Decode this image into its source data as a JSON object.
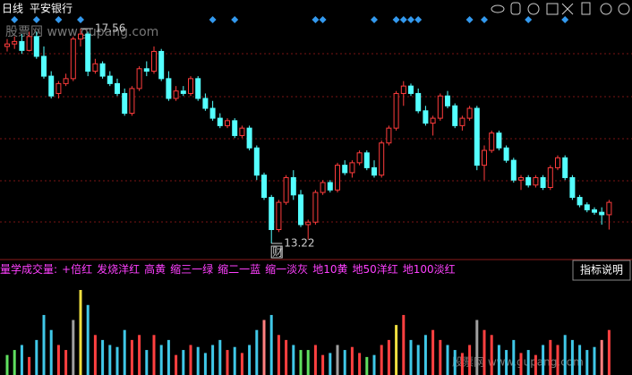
{
  "chart_data": [
    {
      "type": "candlestick",
      "period": "日线",
      "title": "平安银行",
      "up_color": "#ff3c3c",
      "down_color": "#54ffff",
      "signal_color": "#3399ee",
      "high_label": 17.56,
      "low_label": 13.22,
      "low_marker": "财",
      "watermark": "股票网 www.gupang.com",
      "ohlc": [
        [
          17.2,
          17.35,
          17.1,
          17.25
        ],
        [
          17.25,
          17.4,
          17.15,
          17.3
        ],
        [
          17.3,
          17.45,
          17.05,
          17.12
        ],
        [
          17.12,
          17.5,
          17.1,
          17.4
        ],
        [
          17.4,
          17.5,
          16.95,
          17.0
        ],
        [
          17.0,
          17.2,
          16.55,
          16.6
        ],
        [
          16.6,
          16.7,
          16.15,
          16.2
        ],
        [
          16.25,
          16.5,
          16.15,
          16.45
        ],
        [
          16.45,
          16.65,
          16.4,
          16.55
        ],
        [
          16.55,
          17.4,
          16.5,
          17.35
        ],
        [
          17.35,
          17.56,
          17.2,
          17.45
        ],
        [
          17.45,
          17.5,
          16.6,
          16.7
        ],
        [
          16.7,
          16.95,
          16.65,
          16.85
        ],
        [
          16.85,
          16.9,
          16.55,
          16.6
        ],
        [
          16.6,
          16.7,
          16.4,
          16.45
        ],
        [
          16.45,
          16.55,
          16.2,
          16.25
        ],
        [
          16.25,
          16.35,
          15.8,
          15.85
        ],
        [
          15.85,
          16.4,
          15.8,
          16.35
        ],
        [
          16.35,
          16.8,
          16.3,
          16.75
        ],
        [
          16.75,
          16.9,
          16.6,
          16.7
        ],
        [
          16.7,
          17.2,
          16.65,
          17.1
        ],
        [
          17.1,
          17.15,
          16.5,
          16.55
        ],
        [
          16.55,
          16.7,
          16.1,
          16.15
        ],
        [
          16.15,
          16.4,
          16.1,
          16.3
        ],
        [
          16.3,
          16.4,
          16.2,
          16.25
        ],
        [
          16.25,
          16.6,
          16.2,
          16.55
        ],
        [
          16.55,
          16.6,
          16.1,
          16.15
        ],
        [
          16.15,
          16.25,
          15.9,
          15.95
        ],
        [
          15.95,
          16.1,
          15.7,
          15.75
        ],
        [
          15.75,
          15.85,
          15.55,
          15.6
        ],
        [
          15.6,
          15.75,
          15.55,
          15.7
        ],
        [
          15.7,
          15.75,
          15.35,
          15.4
        ],
        [
          15.4,
          15.6,
          15.35,
          15.55
        ],
        [
          15.55,
          15.6,
          15.1,
          15.15
        ],
        [
          15.15,
          15.2,
          14.5,
          14.6
        ],
        [
          14.6,
          14.65,
          14.1,
          14.15
        ],
        [
          14.15,
          14.2,
          13.22,
          13.5
        ],
        [
          13.5,
          14.1,
          13.45,
          14.05
        ],
        [
          14.05,
          14.6,
          14.0,
          14.55
        ],
        [
          14.55,
          14.7,
          14.1,
          14.2
        ],
        [
          14.2,
          14.3,
          13.55,
          13.6
        ],
        [
          13.6,
          13.7,
          13.3,
          13.65
        ],
        [
          13.65,
          14.3,
          13.6,
          14.25
        ],
        [
          14.25,
          14.5,
          14.2,
          14.45
        ],
        [
          14.45,
          14.5,
          14.25,
          14.3
        ],
        [
          14.3,
          14.85,
          14.25,
          14.8
        ],
        [
          14.8,
          14.9,
          14.6,
          14.65
        ],
        [
          14.65,
          14.9,
          14.55,
          14.85
        ],
        [
          14.85,
          15.1,
          14.8,
          15.05
        ],
        [
          15.05,
          15.1,
          14.7,
          14.75
        ],
        [
          14.75,
          14.9,
          14.55,
          14.6
        ],
        [
          14.6,
          15.3,
          14.55,
          15.25
        ],
        [
          15.25,
          15.6,
          15.2,
          15.55
        ],
        [
          15.55,
          16.3,
          15.5,
          16.25
        ],
        [
          16.25,
          16.5,
          16.0,
          16.4
        ],
        [
          16.4,
          16.45,
          16.2,
          16.25
        ],
        [
          16.25,
          16.35,
          15.85,
          15.9
        ],
        [
          15.9,
          16.0,
          15.6,
          15.65
        ],
        [
          15.65,
          15.8,
          15.4,
          15.75
        ],
        [
          15.75,
          16.25,
          15.7,
          16.2
        ],
        [
          16.2,
          16.3,
          15.95,
          16.0
        ],
        [
          16.0,
          16.05,
          15.55,
          15.6
        ],
        [
          15.6,
          15.8,
          15.5,
          15.75
        ],
        [
          15.75,
          16.0,
          15.7,
          15.95
        ],
        [
          15.95,
          16.0,
          14.7,
          14.8
        ],
        [
          14.8,
          15.2,
          14.5,
          15.1
        ],
        [
          15.1,
          15.5,
          15.05,
          15.45
        ],
        [
          15.45,
          15.5,
          15.1,
          15.15
        ],
        [
          15.15,
          15.2,
          14.85,
          14.9
        ],
        [
          14.9,
          14.95,
          14.45,
          14.5
        ],
        [
          14.5,
          14.6,
          14.3,
          14.55
        ],
        [
          14.55,
          14.6,
          14.35,
          14.4
        ],
        [
          14.4,
          14.6,
          14.35,
          14.55
        ],
        [
          14.55,
          14.6,
          14.3,
          14.35
        ],
        [
          14.35,
          14.8,
          14.3,
          14.75
        ],
        [
          14.75,
          15.0,
          14.7,
          14.95
        ],
        [
          14.95,
          15.0,
          14.5,
          14.55
        ],
        [
          14.55,
          14.6,
          14.1,
          14.15
        ],
        [
          14.15,
          14.2,
          13.95,
          14.0
        ],
        [
          14.0,
          14.05,
          13.85,
          13.9
        ],
        [
          13.9,
          13.95,
          13.8,
          13.85
        ],
        [
          13.85,
          13.95,
          13.6,
          13.8
        ],
        [
          13.8,
          14.1,
          13.5,
          14.05
        ]
      ],
      "signals": [
        1,
        4,
        7,
        10,
        28,
        31,
        42,
        43,
        50,
        53,
        54,
        55,
        56,
        63,
        65,
        71,
        76
      ]
    },
    {
      "type": "bar",
      "title": "量学成交量:",
      "legend_color": "#ff40ff",
      "button": "指标说明",
      "legend": [
        "+倍红",
        "发烧洋红",
        "高黄",
        "缩三一绿",
        "缩二一蓝",
        "缩一淡灰",
        "地10黄",
        "地50洋红",
        "地100淡红"
      ],
      "values": [
        20,
        25,
        30,
        18,
        35,
        60,
        45,
        30,
        25,
        55,
        85,
        70,
        40,
        35,
        30,
        28,
        45,
        35,
        40,
        25,
        40,
        30,
        35,
        20,
        25,
        30,
        28,
        22,
        30,
        35,
        25,
        28,
        22,
        30,
        45,
        55,
        60,
        40,
        35,
        30,
        25,
        25,
        30,
        20,
        22,
        30,
        25,
        28,
        22,
        18,
        20,
        30,
        35,
        50,
        60,
        35,
        30,
        40,
        45,
        35,
        30,
        25,
        22,
        30,
        55,
        45,
        40,
        30,
        25,
        35,
        22,
        25,
        20,
        30,
        35,
        30,
        40,
        35,
        30,
        25,
        28,
        35,
        45
      ],
      "colors": [
        "#60e060",
        "#60e060",
        "#40c8e8",
        "#ff4040",
        "#40c8e8",
        "#40c8e8",
        "#40c8e8",
        "#ff4040",
        "#ff4040",
        "#a0a0a0",
        "#f0e040",
        "#40c8e8",
        "#ff4040",
        "#40c8e8",
        "#40c8e8",
        "#40c8e8",
        "#40c8e8",
        "#ff4040",
        "#ff4040",
        "#40c8e8",
        "#ff4040",
        "#40c8e8",
        "#40c8e8",
        "#ff4040",
        "#40c8e8",
        "#ff4040",
        "#40c8e8",
        "#40c8e8",
        "#40c8e8",
        "#40c8e8",
        "#ff4040",
        "#40c8e8",
        "#ff4040",
        "#40c8e8",
        "#40c8e8",
        "#ff8080",
        "#40c8e8",
        "#ff4040",
        "#ff4040",
        "#40c8e8",
        "#60e060",
        "#60e060",
        "#ff4040",
        "#ff4040",
        "#40c8e8",
        "#a0a0a0",
        "#40c8e8",
        "#ff4040",
        "#ff4040",
        "#60e060",
        "#40c8e8",
        "#ff4040",
        "#ff4040",
        "#f0e040",
        "#ff4040",
        "#40c8e8",
        "#40c8e8",
        "#40c8e8",
        "#ff4040",
        "#ff4040",
        "#40c8e8",
        "#40c8e8",
        "#ff4040",
        "#ff4040",
        "#a0a0a0",
        "#ff4040",
        "#ff4040",
        "#40c8e8",
        "#40c8e8",
        "#40c8e8",
        "#ff4040",
        "#40c8e8",
        "#ff4040",
        "#40c8e8",
        "#ff4040",
        "#ff4040",
        "#40c8e8",
        "#40c8e8",
        "#40c8e8",
        "#40c8e8",
        "#40c8e8",
        "#ff8080",
        "#ff4040"
      ]
    }
  ]
}
